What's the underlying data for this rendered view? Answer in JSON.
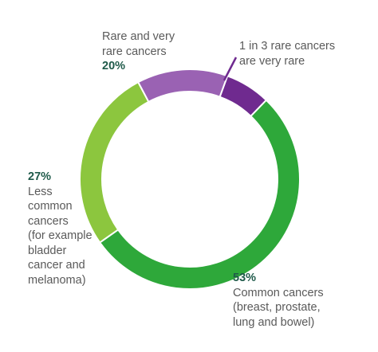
{
  "chart_data": {
    "type": "pie",
    "donut": true,
    "slices": [
      {
        "key": "very_rare",
        "value": 6.67,
        "color": "#6f2a8f"
      },
      {
        "key": "common",
        "value": 53,
        "color": "#2ea83a"
      },
      {
        "key": "less_common",
        "value": 27,
        "color": "#8cc63e"
      },
      {
        "key": "rare",
        "value": 13.33,
        "color": "#9a62b3"
      }
    ],
    "labels": {
      "rare": {
        "lines": [
          "Rare and very",
          "rare cancers"
        ],
        "percent": "20%"
      },
      "very_rare": {
        "lines": [
          "1 in 3 rare cancers",
          "are very rare"
        ]
      },
      "less_common": {
        "percent": "27%",
        "lines": [
          "Less",
          "common",
          "cancers",
          "(for example",
          "bladder",
          "cancer and",
          "melanoma)"
        ]
      },
      "common": {
        "percent": "53%",
        "lines": [
          "Common cancers",
          "(breast, prostate,",
          "lung and bowel)"
        ]
      }
    },
    "colors": {
      "very_rare": "#6f2a8f",
      "rare": "#9a62b3",
      "less_common": "#8cc63e",
      "common": "#2ea83a",
      "percent_text": "#1f5a4a",
      "label_text": "#5a5a5a",
      "leader_line": "#6f2a8f"
    }
  }
}
